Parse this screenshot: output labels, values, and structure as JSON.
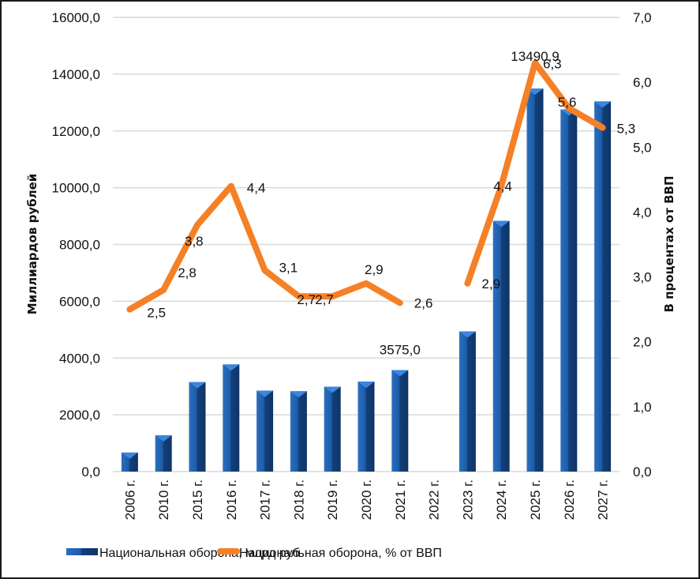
{
  "chart_data": {
    "type": "bar",
    "title": "",
    "categories": [
      "2006 г.",
      "2010 г.",
      "2015 г.",
      "2016 г.",
      "2017 г.",
      "2018 г.",
      "2019 г.",
      "2020 г.",
      "2021 г.",
      "2022 г.",
      "2023 г.",
      "2024 г.",
      "2025 г.",
      "2026 г.",
      "2027 г."
    ],
    "series": [
      {
        "name": "Национальная оборона, млрд руб",
        "type": "bar",
        "axis": "left",
        "color": "#1f5fa8",
        "values": [
          670,
          1280,
          3150,
          3775,
          2850,
          2830,
          2990,
          3170,
          3575.0,
          null,
          4940,
          8830,
          13490.9,
          12760,
          13040
        ],
        "data_labels": {
          "2021 г.": "3575,0",
          "2025 г.": "13490,9"
        }
      },
      {
        "name": "Национальная оборона, % от ВВП",
        "type": "line",
        "axis": "right",
        "color": "#f58025",
        "values": [
          2.5,
          2.8,
          3.8,
          4.4,
          3.1,
          2.7,
          2.7,
          2.9,
          2.6,
          null,
          2.9,
          4.4,
          6.3,
          5.6,
          5.3
        ],
        "data_labels": [
          "2,5",
          "2,8",
          "3,8",
          "4,4",
          "3,1",
          "2,7",
          "2,7",
          "2,9",
          "2,6",
          null,
          "2,9",
          "4,4",
          "6,3",
          "5,6",
          "5,3"
        ]
      }
    ],
    "ylabel": "Миллиардов рублей",
    "y2label": "В процентах от ВВП",
    "xlabel": "",
    "ylim": [
      0,
      16000
    ],
    "y2lim": [
      0,
      7
    ],
    "yticks": [
      "0,0",
      "2000,0",
      "4000,0",
      "6000,0",
      "8000,0",
      "10000,0",
      "12000,0",
      "14000,0",
      "16000,0"
    ],
    "y2ticks": [
      "0,0",
      "1,0",
      "2,0",
      "3,0",
      "4,0",
      "5,0",
      "6,0",
      "7,0"
    ],
    "grid": true,
    "legend_position": "bottom"
  }
}
